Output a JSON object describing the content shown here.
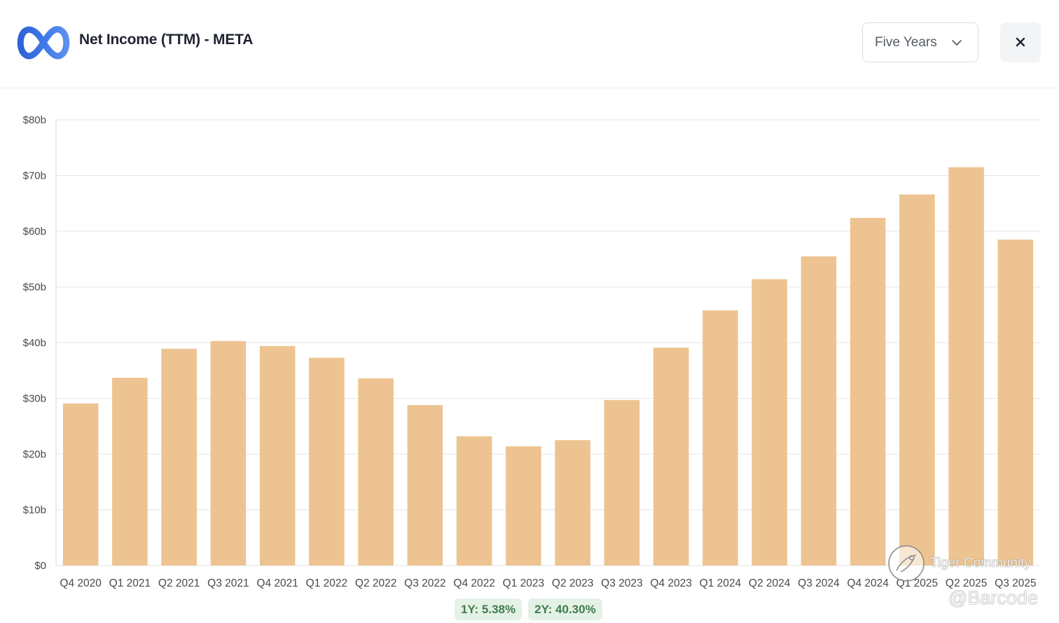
{
  "header": {
    "logo": "meta-infinity-logo",
    "title": "Net Income (TTM) - META",
    "range_select": {
      "selected": "Five Years",
      "icon": "chevron-down-icon"
    },
    "close_label": "×"
  },
  "colors": {
    "bar": "#edc491",
    "grid": "#e6e6e6",
    "axis_text": "#4a4a4a",
    "badge_bg": "#e4f1e5",
    "badge_text": "#3f7d4c",
    "logo_blue": "#3b6ee0"
  },
  "chart_data": {
    "type": "bar",
    "title": "Net Income (TTM) - META",
    "xlabel": "",
    "ylabel": "",
    "ylim": [
      0,
      80
    ],
    "yticks": [
      0,
      10,
      20,
      30,
      40,
      50,
      60,
      70,
      80
    ],
    "ytick_labels": [
      "$0",
      "$10b",
      "$20b",
      "$30b",
      "$40b",
      "$50b",
      "$60b",
      "$70b",
      "$80b"
    ],
    "grid": true,
    "categories": [
      "Q4 2020",
      "Q1 2021",
      "Q2 2021",
      "Q3 2021",
      "Q4 2021",
      "Q1 2022",
      "Q2 2022",
      "Q3 2022",
      "Q4 2022",
      "Q1 2023",
      "Q2 2023",
      "Q3 2023",
      "Q4 2023",
      "Q1 2024",
      "Q2 2024",
      "Q3 2024",
      "Q4 2024",
      "Q1 2025",
      "Q2 2025",
      "Q3 2025"
    ],
    "values": [
      29.1,
      33.7,
      38.9,
      40.3,
      39.4,
      37.3,
      33.6,
      28.8,
      23.2,
      21.4,
      22.5,
      29.7,
      39.1,
      45.8,
      51.4,
      55.5,
      62.4,
      66.6,
      71.5,
      58.5
    ]
  },
  "growth_badges": [
    {
      "label": "1Y: 5.38%"
    },
    {
      "label": "2Y: 40.30%"
    }
  ],
  "watermark": {
    "line1": "Tiger Community",
    "line2": "@Barcode",
    "icon": "tiger-community-logo"
  }
}
